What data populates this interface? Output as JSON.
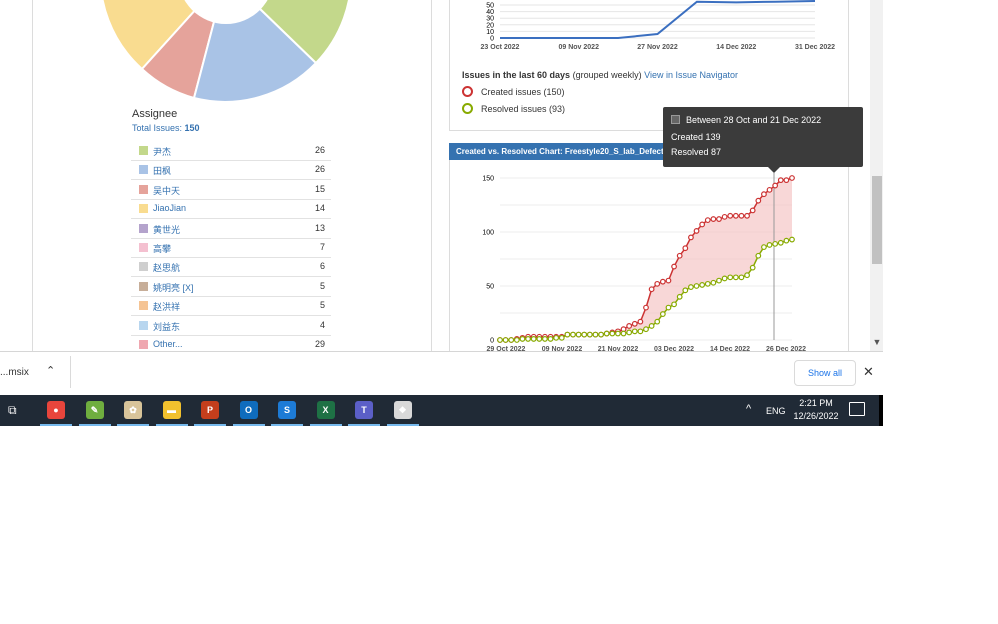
{
  "assignee": {
    "title": "Assignee",
    "total_label": "Total Issues:",
    "total_value": "150",
    "rows": [
      {
        "name": "尹杰",
        "count": "26",
        "color": "#c3d88b"
      },
      {
        "name": "田枫",
        "count": "26",
        "color": "#a9c3e6"
      },
      {
        "name": "吴中天",
        "count": "15",
        "color": "#e5a39b"
      },
      {
        "name": "JiaoJian",
        "count": "14",
        "color": "#f9dc90"
      },
      {
        "name": "黄世光",
        "count": "13",
        "color": "#b4a3cc"
      },
      {
        "name": "高攀",
        "count": "7",
        "color": "#f4c0d0"
      },
      {
        "name": "赵思航",
        "count": "6",
        "color": "#cfcfcf"
      },
      {
        "name": "姚明亮 [X]",
        "count": "5",
        "color": "#c7ae99"
      },
      {
        "name": "赵洪祥",
        "count": "5",
        "color": "#f5c494"
      },
      {
        "name": "刘益东",
        "count": "4",
        "color": "#b8d6ef"
      },
      {
        "name": "Other...",
        "count": "29",
        "color": "#efa7b0"
      }
    ]
  },
  "top_chart": {
    "y_ticks": [
      "50",
      "40",
      "30",
      "20",
      "10",
      "0"
    ],
    "x_ticks": [
      "23 Oct 2022",
      "09 Nov 2022",
      "27 Nov 2022",
      "14 Dec 2022",
      "31 Dec 2022"
    ],
    "line_color": "#3b6fc0",
    "values": [
      0,
      0,
      0,
      0,
      6,
      55,
      54,
      55,
      56
    ]
  },
  "issues_info": {
    "title": "Issues in the last 60 days",
    "grouping": "(grouped weekly)",
    "link": "View in Issue Navigator",
    "created_label": "Created issues (150)",
    "resolved_label": "Resolved issues (93)",
    "created_color": "#cc3333",
    "resolved_color": "#88aa00"
  },
  "main_chart": {
    "header": "Created vs. Resolved Chart: Freestyle20_S_lab_Defect",
    "y_ticks": [
      "150",
      "100",
      "50",
      "0"
    ],
    "x_ticks": [
      "29 Oct 2022",
      "09 Nov 2022",
      "21 Nov 2022",
      "03 Dec 2022",
      "14 Dec 2022",
      "26 Dec 2022"
    ],
    "chart_data": {
      "type": "line",
      "series": [
        {
          "name": "Created",
          "values": [
            0,
            0,
            0,
            1,
            2,
            3,
            3,
            3,
            3,
            3,
            3,
            3,
            5,
            5,
            5,
            5,
            5,
            5,
            5,
            6,
            7,
            8,
            10,
            13,
            15,
            17,
            30,
            47,
            52,
            54,
            55,
            68,
            78,
            85,
            95,
            101,
            107,
            111,
            112,
            112,
            114,
            115,
            115,
            115,
            115,
            120,
            129,
            135,
            139,
            143,
            148,
            148,
            150
          ]
        },
        {
          "name": "Resolved",
          "values": [
            0,
            0,
            0,
            0,
            1,
            1,
            1,
            1,
            1,
            1,
            2,
            2,
            5,
            5,
            5,
            5,
            5,
            5,
            5,
            6,
            6,
            6,
            6,
            7,
            8,
            8,
            10,
            13,
            17,
            24,
            30,
            33,
            40,
            46,
            49,
            50,
            51,
            52,
            53,
            55,
            57,
            58,
            58,
            58,
            60,
            67,
            78,
            86,
            88,
            89,
            90,
            92,
            93
          ]
        }
      ]
    }
  },
  "tooltip": {
    "period": "Between 28 Oct and 21 Dec 2022",
    "created": "Created   139",
    "resolved": "Resolved 87"
  },
  "download": {
    "file": "...msix",
    "show_all": "Show all"
  },
  "taskbar": {
    "lang": "ENG",
    "time": "2:21 PM",
    "date": "12/26/2022",
    "apps": [
      {
        "name": "chrome",
        "color": "#e8453c",
        "glyph": "●"
      },
      {
        "name": "notepad",
        "color": "#6fae3f",
        "glyph": "✎"
      },
      {
        "name": "paint",
        "color": "#d8c49a",
        "glyph": "✿"
      },
      {
        "name": "explorer",
        "color": "#f2c12e",
        "glyph": "▬"
      },
      {
        "name": "powerpoint",
        "color": "#c43e1c",
        "glyph": "P"
      },
      {
        "name": "outlook",
        "color": "#0f6cbd",
        "glyph": "O"
      },
      {
        "name": "security",
        "color": "#1d7bd6",
        "glyph": "S"
      },
      {
        "name": "excel",
        "color": "#1e7145",
        "glyph": "X"
      },
      {
        "name": "teams",
        "color": "#5b5fc7",
        "glyph": "T"
      },
      {
        "name": "chat",
        "color": "#d9d9d9",
        "glyph": "❖"
      }
    ]
  }
}
